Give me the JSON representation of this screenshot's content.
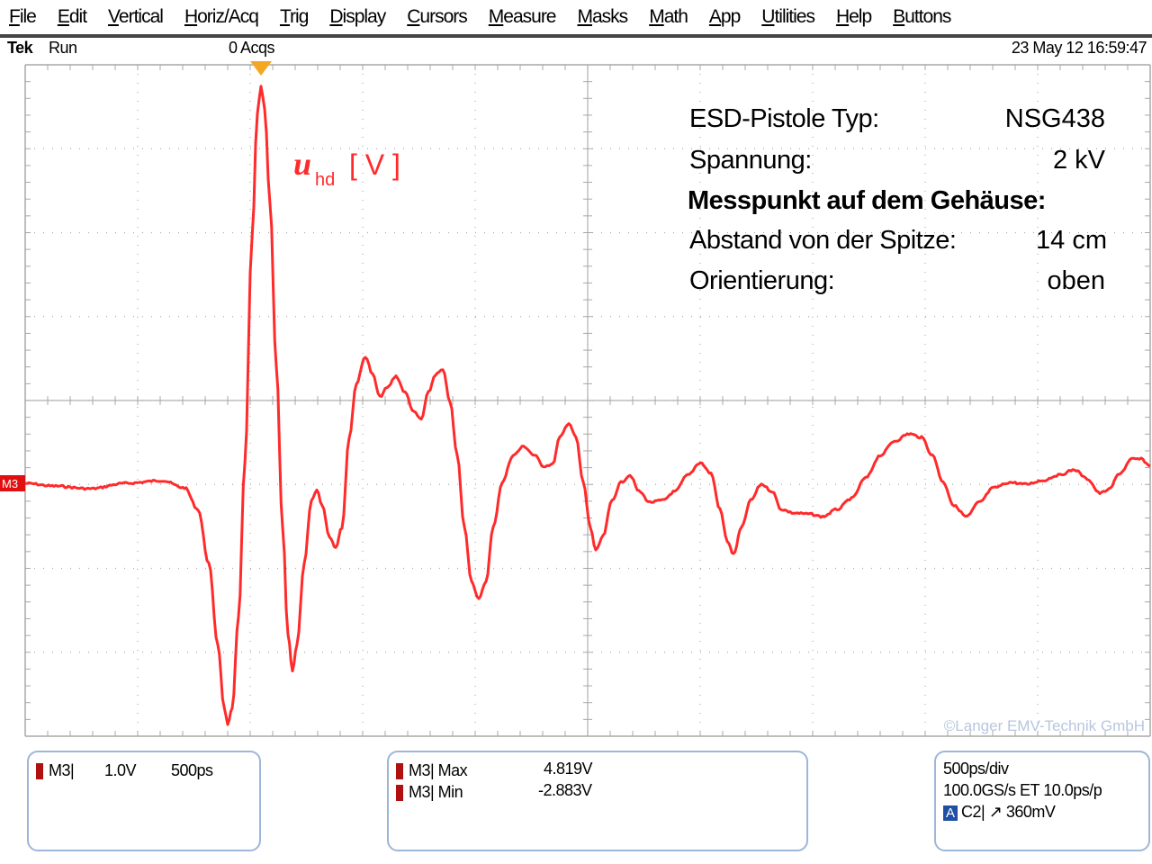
{
  "menu": [
    "File",
    "Edit",
    "Vertical",
    "Horiz/Acq",
    "Trig",
    "Display",
    "Cursors",
    "Measure",
    "Masks",
    "Math",
    "App",
    "Utilities",
    "Help",
    "Buttons"
  ],
  "status": {
    "brand": "Tek",
    "run": "Run",
    "acqs": "0 Acqs",
    "datetime": "23 May 12 16:59:47"
  },
  "trace": {
    "label_symbol": "u",
    "label_sub": "hd",
    "label_unit": "[ V ]",
    "color": "#ff2a2a",
    "channel_marker": "M3"
  },
  "info": {
    "rows": [
      {
        "label": "ESD-Pistole Typ:",
        "value": "NSG438"
      },
      {
        "label": "Spannung:",
        "value": "2 kV"
      },
      {
        "label": "Abstand von der Spitze:",
        "value": "14 cm"
      },
      {
        "label": "Orientierung:",
        "value": "oben"
      }
    ],
    "heading": "Messpunkt auf dem Gehäuse:"
  },
  "watermark": "©Langer EMV-Technik GmbH",
  "readouts": {
    "channel": {
      "name": "M3|",
      "scale": "1.0V",
      "time": "500ps"
    },
    "measure": [
      {
        "name": "M3| Max",
        "value": "4.819V"
      },
      {
        "name": "M3| Min",
        "value": "-2.883V"
      }
    ],
    "timebase": {
      "line1": "500ps/div",
      "line2": "100.0GS/s ET 10.0ps/p",
      "trigger_channel": "C2|",
      "trigger_symbol": "↗",
      "trigger_level": "360mV"
    }
  },
  "colors": {
    "grid": "#a8a8a8",
    "trace": "#ff2a2a",
    "trigger_marker": "#f5a623",
    "readout_border": "#9db6d9"
  }
}
